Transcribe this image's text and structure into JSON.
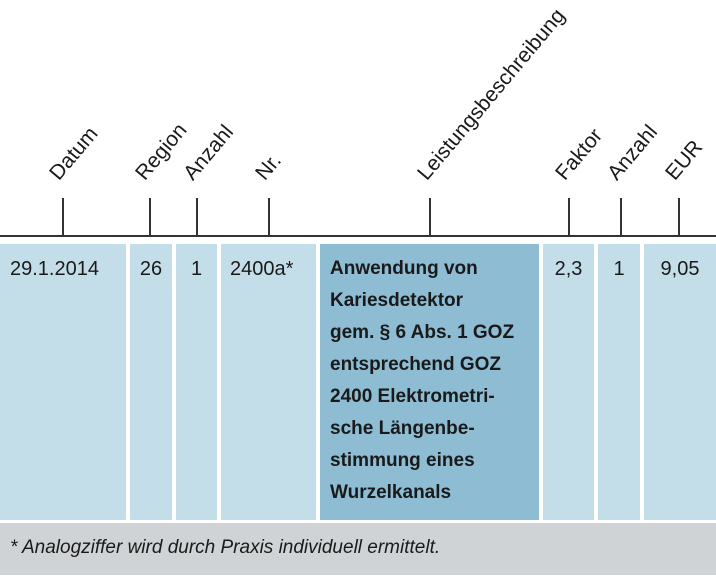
{
  "headers": {
    "datum": "Datum",
    "region": "Region",
    "anzahl1": "Anzahl",
    "nr": "Nr.",
    "leistung": "Leistungsbeschreibung",
    "faktor": "Faktor",
    "anzahl2": "Anzahl",
    "eur": "EUR"
  },
  "row": {
    "datum": "29.1.2014",
    "region": "26",
    "anzahl1": "1",
    "nr": "2400a*",
    "leistung_lines": [
      "Anwendung von",
      "Kariesdetektor",
      "gem. § 6 Abs. 1 GOZ",
      "entsprechend GOZ",
      "2400 Elektrometri-",
      "sche Längenbe-",
      "stimmung eines",
      "Wurzelkanals"
    ],
    "faktor": "2,3",
    "anzahl2": "1",
    "eur": "9,05"
  },
  "footnote": "* Analogziffer wird durch Praxis individuell ermittelt.",
  "colors": {
    "cell": "#c3dde9",
    "description_cell": "#8dbcd3",
    "footnote_bg": "#cfd3d5"
  }
}
